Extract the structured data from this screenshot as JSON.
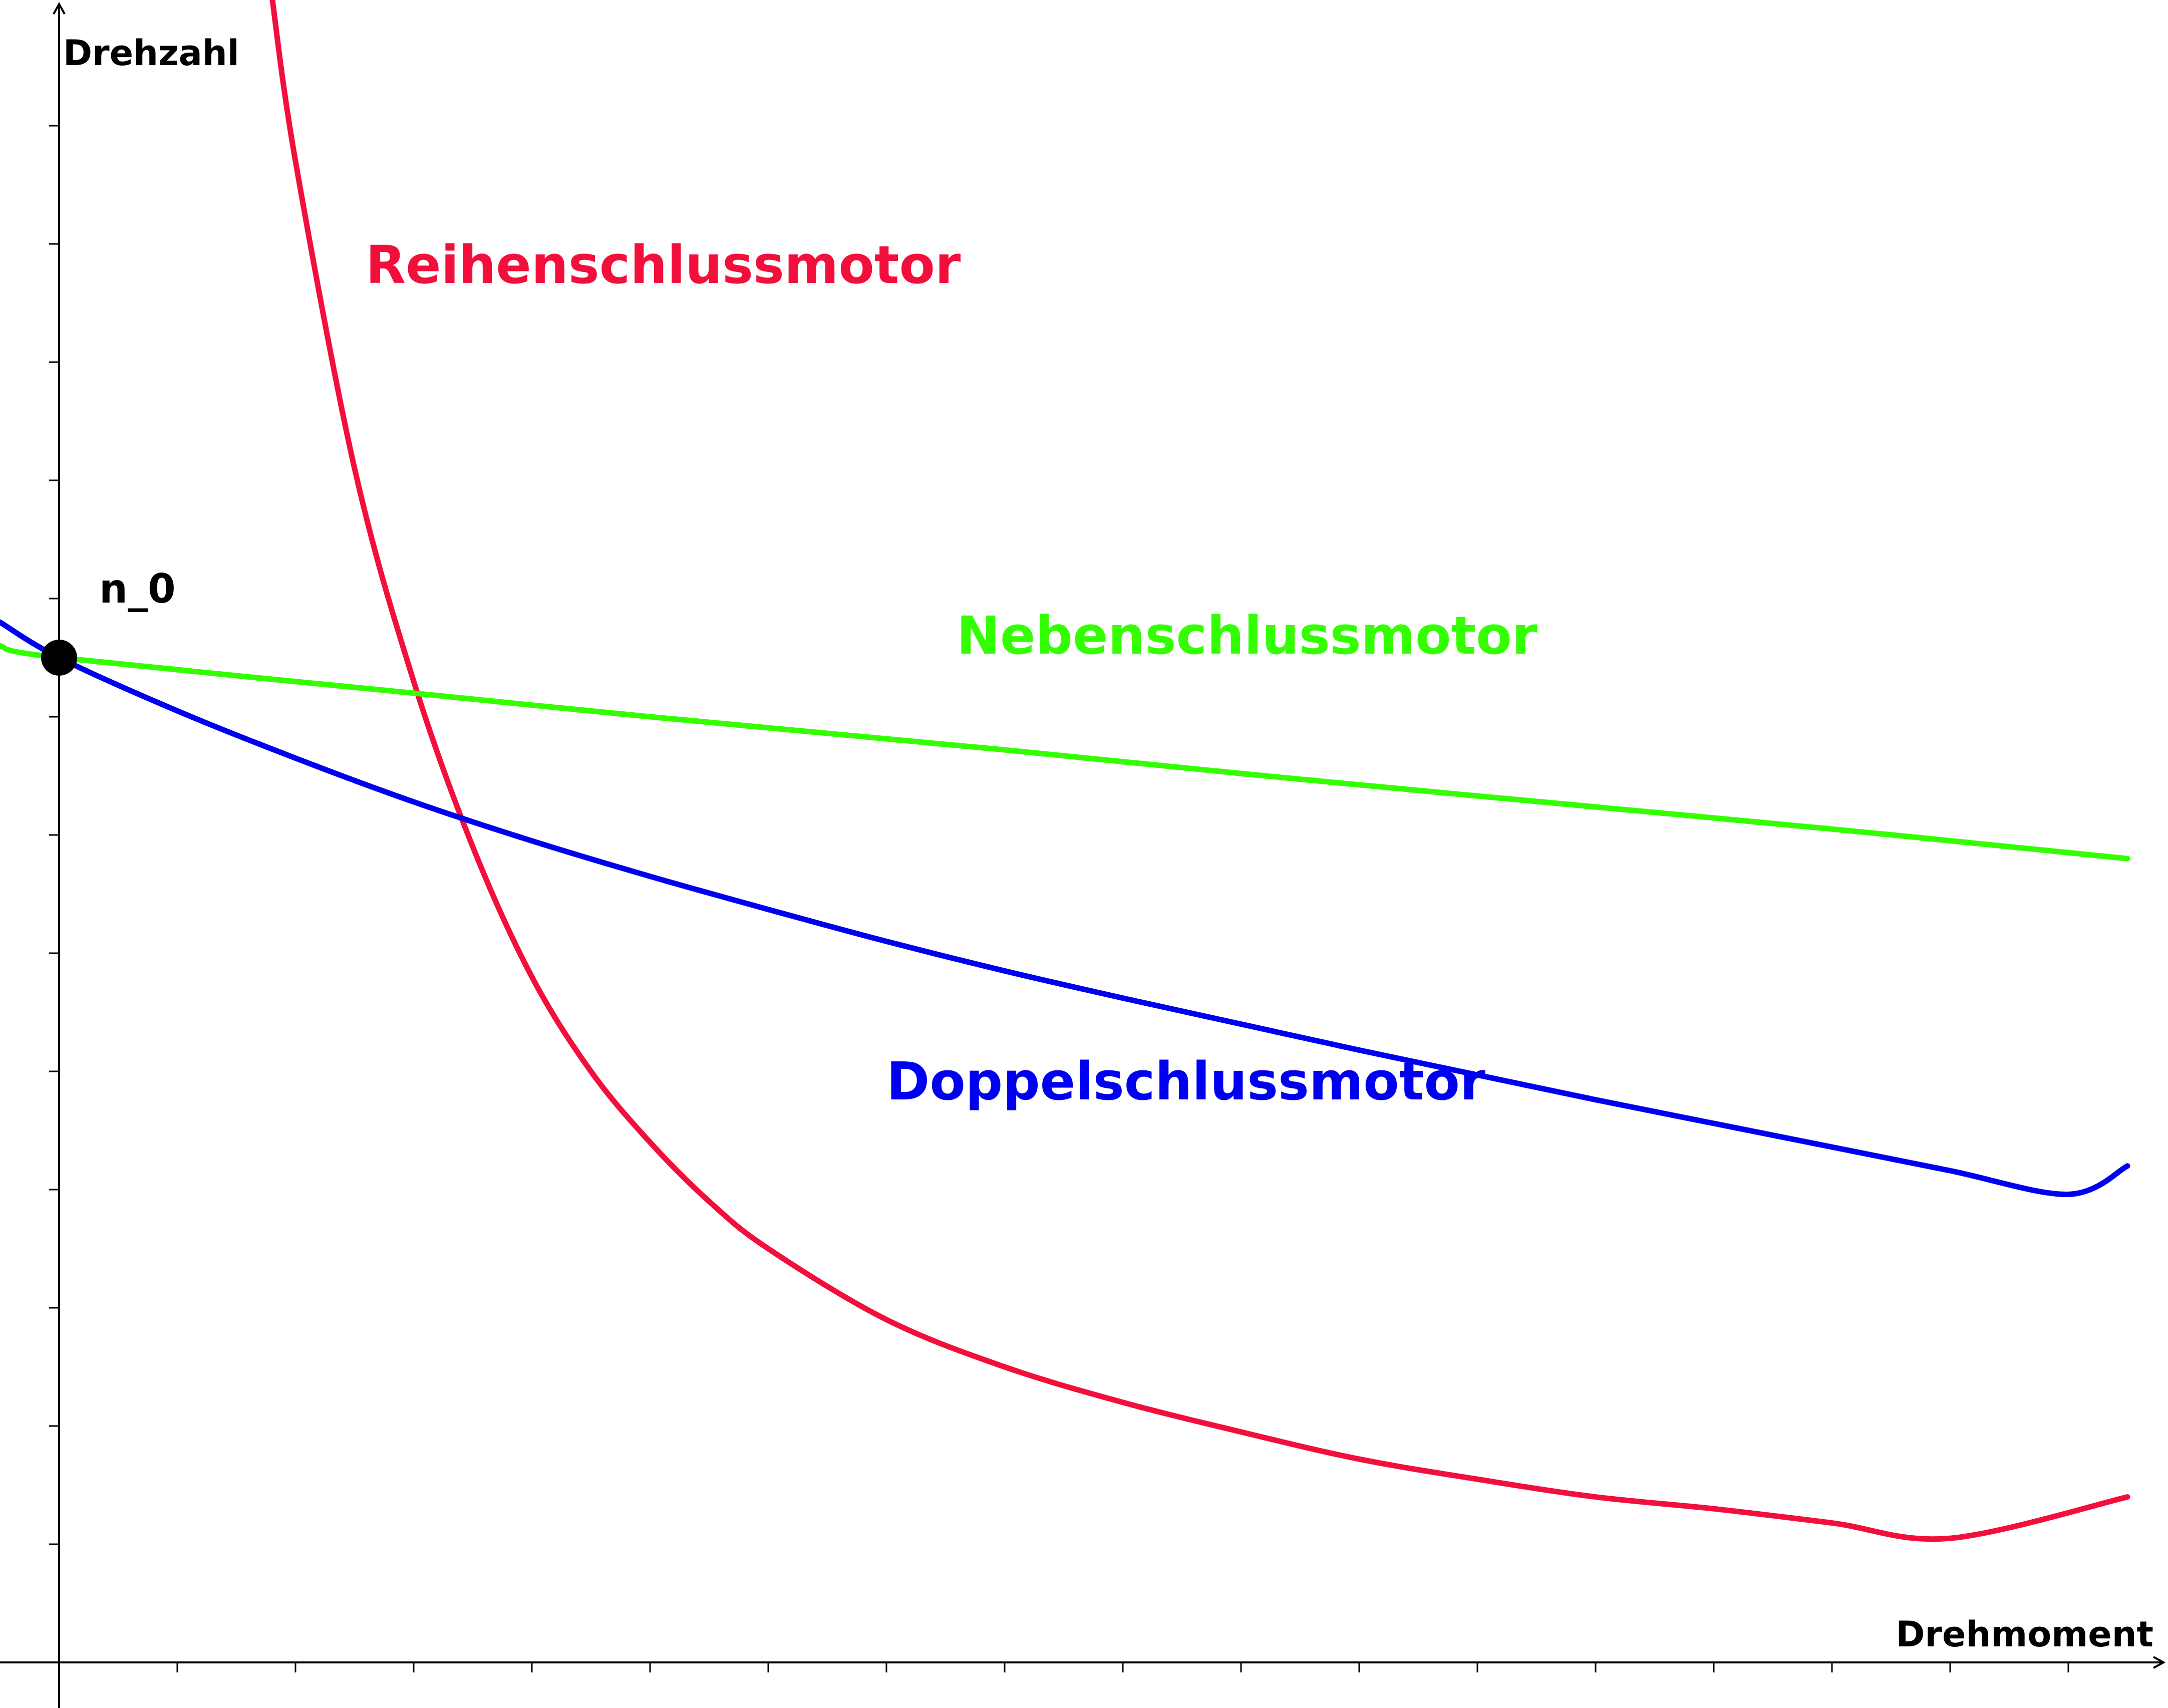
{
  "chart_data": {
    "type": "line",
    "title": "",
    "xlabel": "Drehmoment",
    "ylabel": "Drehzahl",
    "xlim": [
      -0.5,
      17.5
    ],
    "ylim": [
      -0.35,
      14.1
    ],
    "grid": false,
    "legend": "none",
    "x_ticks": [
      1,
      2,
      3,
      4,
      5,
      6,
      7,
      8,
      9,
      10,
      11,
      12,
      13,
      14,
      15,
      16,
      17
    ],
    "y_ticks": [
      1,
      2,
      3,
      4,
      5,
      6,
      7,
      8,
      9,
      10,
      11,
      12,
      13
    ],
    "series": [
      {
        "name": "Reihenschlussmotor",
        "color": "#f20f3c",
        "x": [
          1.8,
          2.0,
          2.5,
          3.0,
          3.5,
          4.0,
          4.5,
          5.0,
          5.5,
          6.0,
          7.0,
          8.0,
          9.0,
          10.0,
          11.0,
          12.0,
          13.0,
          14.0,
          15.0,
          16.0,
          17.5
        ],
        "y": [
          14.1,
          12.7,
          10.1,
          8.3,
          6.9,
          5.8,
          5.0,
          4.4,
          3.9,
          3.5,
          2.9,
          2.5,
          2.2,
          1.95,
          1.72,
          1.55,
          1.4,
          1.3,
          1.18,
          1.05,
          1.4
        ]
      },
      {
        "name": "Nebenschlussmotor",
        "color": "#33ff00",
        "x": [
          -0.5,
          0,
          3.0,
          5.0,
          8.0,
          10.0,
          12.0,
          15.0,
          17.5
        ],
        "y": [
          8.6,
          8.5,
          8.2,
          8.0,
          7.72,
          7.52,
          7.33,
          7.05,
          6.8
        ]
      },
      {
        "name": "Doppelschlussmotor",
        "color": "#0000f0",
        "x": [
          -0.5,
          0,
          1.0,
          2.0,
          3.0,
          4.0,
          5.0,
          6.0,
          7.0,
          8.0,
          9.0,
          10.0,
          11.0,
          12.0,
          13.0,
          14.0,
          15.0,
          16.0,
          17.0,
          17.5
        ],
        "y": [
          8.8,
          8.5,
          8.05,
          7.65,
          7.28,
          6.95,
          6.65,
          6.37,
          6.1,
          5.85,
          5.62,
          5.4,
          5.18,
          4.97,
          4.76,
          4.56,
          4.36,
          4.16,
          3.96,
          4.2
        ]
      }
    ],
    "points": [
      {
        "label": "n_0",
        "x": 0,
        "y": 8.5
      }
    ]
  },
  "labels": {
    "reihen": "Reihenschlussmotor",
    "neben": "Nebenschlussmotor",
    "doppel": "Doppelschlussmotor"
  }
}
